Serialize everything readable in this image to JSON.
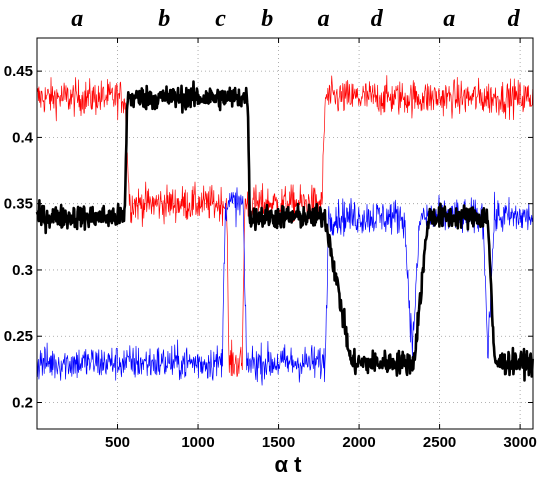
{
  "chart_data": {
    "type": "line",
    "title": "",
    "xlabel": "α t",
    "ylabel": "",
    "xlim": [
      0,
      3080
    ],
    "ylim": [
      0.18,
      0.475
    ],
    "grid": true,
    "legend": "none",
    "xticks": [
      500,
      1000,
      1500,
      2000,
      2500,
      3000
    ],
    "xtick_labels": [
      "500",
      "1000",
      "1500",
      "2000",
      "2500",
      "3000"
    ],
    "yticks": [
      0.2,
      0.25,
      0.3,
      0.35,
      0.4,
      0.45
    ],
    "ytick_labels": [
      "0.2",
      "0.25",
      "0.3",
      "0.35",
      "0.4",
      "0.45"
    ],
    "annotations": [
      {
        "text": "a",
        "x": 250
      },
      {
        "text": "b",
        "x": 790
      },
      {
        "text": "c",
        "x": 1140
      },
      {
        "text": "b",
        "x": 1430
      },
      {
        "text": "a",
        "x": 1780
      },
      {
        "text": "d",
        "x": 2110
      },
      {
        "text": "a",
        "x": 2560
      },
      {
        "text": "d",
        "x": 2960
      }
    ],
    "series": [
      {
        "color": "#ff0000",
        "width": 0.7,
        "noise": 0.024,
        "values": [
          [
            0,
            0.43
          ],
          [
            545,
            0.43
          ],
          [
            575,
            0.35
          ],
          [
            1180,
            0.35
          ],
          [
            1190,
            0.23
          ],
          [
            1275,
            0.23
          ],
          [
            1290,
            0.35
          ],
          [
            1770,
            0.35
          ],
          [
            1790,
            0.43
          ],
          [
            3080,
            0.43
          ]
        ]
      },
      {
        "color": "#0000ff",
        "width": 0.7,
        "noise": 0.024,
        "values": [
          [
            0,
            0.23
          ],
          [
            1150,
            0.23
          ],
          [
            1170,
            0.35
          ],
          [
            1280,
            0.35
          ],
          [
            1300,
            0.23
          ],
          [
            1790,
            0.23
          ],
          [
            1810,
            0.34
          ],
          [
            2280,
            0.34
          ],
          [
            2330,
            0.24
          ],
          [
            2380,
            0.34
          ],
          [
            2770,
            0.34
          ],
          [
            2800,
            0.24
          ],
          [
            2840,
            0.34
          ],
          [
            3080,
            0.34
          ]
        ]
      },
      {
        "color": "#000000",
        "width": 2.6,
        "noise": 0.016,
        "values": [
          [
            0,
            0.34
          ],
          [
            545,
            0.34
          ],
          [
            560,
            0.43
          ],
          [
            1310,
            0.43
          ],
          [
            1320,
            0.34
          ],
          [
            1790,
            0.34
          ],
          [
            1950,
            0.23
          ],
          [
            2020,
            0.23
          ],
          [
            2120,
            0.23
          ],
          [
            2340,
            0.23
          ],
          [
            2430,
            0.34
          ],
          [
            2800,
            0.34
          ],
          [
            2840,
            0.23
          ],
          [
            3080,
            0.23
          ]
        ]
      }
    ]
  }
}
